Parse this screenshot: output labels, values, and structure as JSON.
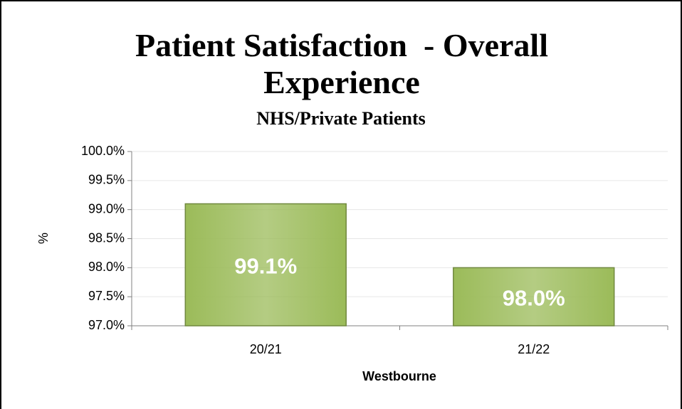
{
  "chart_data": {
    "type": "bar",
    "title": "Patient Satisfaction  - Overall Experience",
    "subtitle": "NHS/Private Patients",
    "y_axis_label": "%",
    "x_axis_label": "Westbourne",
    "categories": [
      "20/21",
      "21/22"
    ],
    "values": [
      99.1,
      98.0
    ],
    "value_labels": [
      "99.1%",
      "98.0%"
    ],
    "color": "#9bbb59",
    "ylim": [
      97,
      100
    ],
    "yticks": [
      {
        "value": 97,
        "label": "97.0%"
      },
      {
        "value": 97.5,
        "label": "97.5%"
      },
      {
        "value": 98,
        "label": "98.0%"
      },
      {
        "value": 98.5,
        "label": "98.5%"
      },
      {
        "value": 99,
        "label": "99.0%"
      },
      {
        "value": 99.5,
        "label": "99.5%"
      },
      {
        "value": 100,
        "label": "100.0%"
      }
    ],
    "grid": true
  }
}
